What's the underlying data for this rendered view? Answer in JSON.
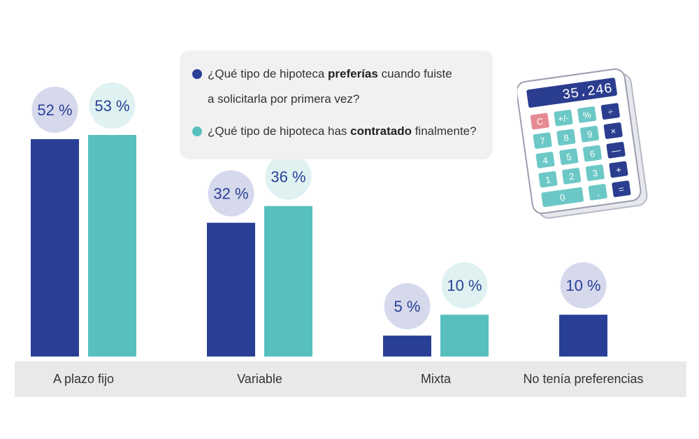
{
  "legend": [
    {
      "color": "#293f96",
      "pre": "¿Qué tipo de hipoteca ",
      "bold": "preferías",
      "post": " cuando fuiste",
      "line2": "a solicitarla por primera vez?"
    },
    {
      "color": "#58bfbf",
      "pre": "¿Qué tipo de hipoteca has ",
      "bold": "contratado",
      "post": " finalmente?",
      "line2": ""
    }
  ],
  "calculator": {
    "display": "35.246",
    "keys": [
      "C",
      "+/-",
      "%",
      "÷",
      "7",
      "8",
      "9",
      "×",
      "4",
      "5",
      "6",
      "—",
      "1",
      "2",
      "3",
      "+",
      "0",
      ",",
      "="
    ]
  },
  "colors": {
    "series1": "#293f96",
    "series2": "#58bfbf",
    "bubble1": "#d6d9ec",
    "bubble2": "#dff2f1",
    "axis_band": "#e9e9e9",
    "label_text": "#293f96"
  },
  "chart_data": {
    "type": "bar",
    "categories": [
      "A plazo fijo",
      "Variable",
      "Mixta",
      "No tenía preferencias"
    ],
    "series": [
      {
        "values": [
          52,
          32,
          5,
          10
        ],
        "labels": [
          "52 %",
          "32 %",
          "5 %",
          "10 %"
        ]
      },
      {
        "values": [
          53,
          36,
          10,
          null
        ],
        "labels": [
          "53 %",
          "36 %",
          "10 %",
          ""
        ]
      }
    ],
    "ylim": [
      0,
      100
    ],
    "grid": false,
    "legend_position": "top-center"
  }
}
